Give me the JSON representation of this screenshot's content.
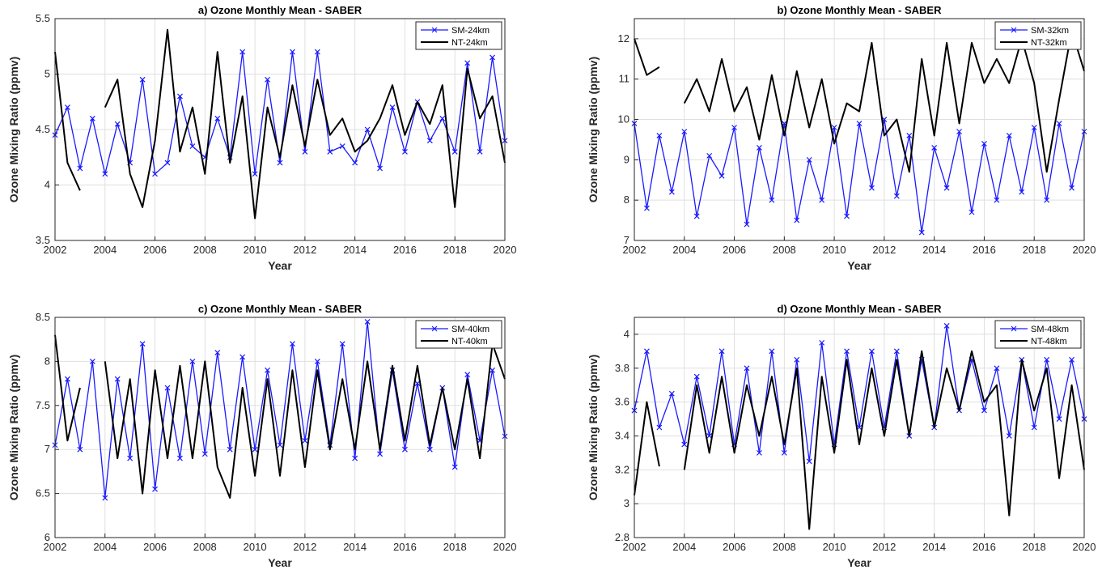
{
  "figure": {
    "background": "#ffffff",
    "sm_color": "#1a1aff",
    "nt_color": "#000000"
  },
  "chart_data": [
    {
      "type": "line",
      "title": "a) Ozone Monthly Mean - SABER",
      "xlabel": "Year",
      "ylabel": "Ozone Mixing Ratio (ppmv)",
      "xlim": [
        2002,
        2020
      ],
      "ylim": [
        3.5,
        5.5
      ],
      "xticks": [
        "2002",
        "2004",
        "2006",
        "2008",
        "2010",
        "2012",
        "2014",
        "2016",
        "2018",
        "2020"
      ],
      "yticks": [
        "3.5",
        "4",
        "4.5",
        "5",
        "5.5"
      ],
      "grid": true,
      "legend_position": "top-right",
      "series": [
        {
          "name": "SM-24km",
          "color": "#1a1aff",
          "marker": "x",
          "x": [
            2002.0,
            2002.5,
            2003.0,
            2003.5,
            2004.0,
            2004.5,
            2005.0,
            2005.5,
            2006.0,
            2006.5,
            2007.0,
            2007.5,
            2008.0,
            2008.5,
            2009.0,
            2009.5,
            2010.0,
            2010.5,
            2011.0,
            2011.5,
            2012.0,
            2012.5,
            2013.0,
            2013.5,
            2014.0,
            2014.5,
            2015.0,
            2015.5,
            2016.0,
            2016.5,
            2017.0,
            2017.5,
            2018.0,
            2018.5,
            2019.0,
            2019.5,
            2020.0
          ],
          "values": [
            4.45,
            4.7,
            4.15,
            4.6,
            4.1,
            4.55,
            4.2,
            4.95,
            4.1,
            4.2,
            4.8,
            4.35,
            4.25,
            4.6,
            4.25,
            5.2,
            4.1,
            4.95,
            4.2,
            5.2,
            4.3,
            5.2,
            4.3,
            4.35,
            4.2,
            4.5,
            4.15,
            4.7,
            4.3,
            4.75,
            4.4,
            4.6,
            4.3,
            5.1,
            4.3,
            5.15,
            4.4
          ]
        },
        {
          "name": "NT-24km",
          "color": "#000000",
          "marker": "none",
          "x": [
            2002.0,
            2002.5,
            2003.0,
            2003.5,
            2004.0,
            2004.5,
            2005.0,
            2005.5,
            2006.0,
            2006.5,
            2007.0,
            2007.5,
            2008.0,
            2008.5,
            2009.0,
            2009.5,
            2010.0,
            2010.5,
            2011.0,
            2011.5,
            2012.0,
            2012.5,
            2013.0,
            2013.5,
            2014.0,
            2014.5,
            2015.0,
            2015.5,
            2016.0,
            2016.5,
            2017.0,
            2017.5,
            2018.0,
            2018.5,
            2019.0,
            2019.5,
            2020.0
          ],
          "values": [
            5.2,
            4.2,
            3.95,
            null,
            4.7,
            4.95,
            4.1,
            3.8,
            4.4,
            5.4,
            4.3,
            4.7,
            4.1,
            5.2,
            4.2,
            4.8,
            3.7,
            4.7,
            4.25,
            4.9,
            4.35,
            4.95,
            4.45,
            4.6,
            4.3,
            4.4,
            4.6,
            4.9,
            4.45,
            4.75,
            4.55,
            4.9,
            3.8,
            5.05,
            4.6,
            4.8,
            4.2
          ]
        }
      ]
    },
    {
      "type": "line",
      "title": "b) Ozone Monthly Mean - SABER",
      "xlabel": "Year",
      "ylabel": "Ozone Mixing Ratio (ppmv)",
      "xlim": [
        2002,
        2020
      ],
      "ylim": [
        7,
        12.5
      ],
      "xticks": [
        "2002",
        "2004",
        "2006",
        "2008",
        "2010",
        "2012",
        "2014",
        "2016",
        "2018",
        "2020"
      ],
      "yticks": [
        "7",
        "8",
        "9",
        "10",
        "11",
        "12"
      ],
      "grid": true,
      "legend_position": "top-right",
      "series": [
        {
          "name": "SM-32km",
          "color": "#1a1aff",
          "marker": "x",
          "x": [
            2002.0,
            2002.5,
            2003.0,
            2003.5,
            2004.0,
            2004.5,
            2005.0,
            2005.5,
            2006.0,
            2006.5,
            2007.0,
            2007.5,
            2008.0,
            2008.5,
            2009.0,
            2009.5,
            2010.0,
            2010.5,
            2011.0,
            2011.5,
            2012.0,
            2012.5,
            2013.0,
            2013.5,
            2014.0,
            2014.5,
            2015.0,
            2015.5,
            2016.0,
            2016.5,
            2017.0,
            2017.5,
            2018.0,
            2018.5,
            2019.0,
            2019.5,
            2020.0
          ],
          "values": [
            9.9,
            7.8,
            9.6,
            8.2,
            9.7,
            7.6,
            9.1,
            8.6,
            9.8,
            7.4,
            9.3,
            8.0,
            9.9,
            7.5,
            9.0,
            8.0,
            9.8,
            7.6,
            9.9,
            8.3,
            10.0,
            8.1,
            9.6,
            7.2,
            9.3,
            8.3,
            9.7,
            7.7,
            9.4,
            8.0,
            9.6,
            8.2,
            9.8,
            8.0,
            9.9,
            8.3,
            9.7
          ]
        },
        {
          "name": "NT-32km",
          "color": "#000000",
          "marker": "none",
          "x": [
            2002.0,
            2002.5,
            2003.0,
            2003.5,
            2004.0,
            2004.5,
            2005.0,
            2005.5,
            2006.0,
            2006.5,
            2007.0,
            2007.5,
            2008.0,
            2008.5,
            2009.0,
            2009.5,
            2010.0,
            2010.5,
            2011.0,
            2011.5,
            2012.0,
            2012.5,
            2013.0,
            2013.5,
            2014.0,
            2014.5,
            2015.0,
            2015.5,
            2016.0,
            2016.5,
            2017.0,
            2017.5,
            2018.0,
            2018.5,
            2019.0,
            2019.5,
            2020.0
          ],
          "values": [
            12.0,
            11.1,
            11.3,
            null,
            10.4,
            11.0,
            10.2,
            11.5,
            10.2,
            10.8,
            9.5,
            11.1,
            9.6,
            11.2,
            9.8,
            11.0,
            9.4,
            10.4,
            10.2,
            11.9,
            9.6,
            10.0,
            8.7,
            11.5,
            9.6,
            11.9,
            9.9,
            11.9,
            10.9,
            11.5,
            10.9,
            12.0,
            10.9,
            8.7,
            10.5,
            12.2,
            11.2
          ]
        }
      ]
    },
    {
      "type": "line",
      "title": "c) Ozone Monthly Mean - SABER",
      "xlabel": "Year",
      "ylabel": "Ozone Mixing Ratio (ppmv)",
      "xlim": [
        2002,
        2020
      ],
      "ylim": [
        6,
        8.5
      ],
      "xticks": [
        "2002",
        "2004",
        "2006",
        "2008",
        "2010",
        "2012",
        "2014",
        "2016",
        "2018",
        "2020"
      ],
      "yticks": [
        "6",
        "6.5",
        "7",
        "7.5",
        "8",
        "8.5"
      ],
      "grid": true,
      "legend_position": "top-right",
      "series": [
        {
          "name": "SM-40km",
          "color": "#1a1aff",
          "marker": "x",
          "x": [
            2002.0,
            2002.5,
            2003.0,
            2003.5,
            2004.0,
            2004.5,
            2005.0,
            2005.5,
            2006.0,
            2006.5,
            2007.0,
            2007.5,
            2008.0,
            2008.5,
            2009.0,
            2009.5,
            2010.0,
            2010.5,
            2011.0,
            2011.5,
            2012.0,
            2012.5,
            2013.0,
            2013.5,
            2014.0,
            2014.5,
            2015.0,
            2015.5,
            2016.0,
            2016.5,
            2017.0,
            2017.5,
            2018.0,
            2018.5,
            2019.0,
            2019.5,
            2020.0
          ],
          "values": [
            7.05,
            7.8,
            7.0,
            8.0,
            6.45,
            7.8,
            6.9,
            8.2,
            6.55,
            7.7,
            6.9,
            8.0,
            6.95,
            8.1,
            7.0,
            8.05,
            7.0,
            7.9,
            7.05,
            8.2,
            7.1,
            8.0,
            7.05,
            8.2,
            6.9,
            8.45,
            6.95,
            7.9,
            7.0,
            7.75,
            7.0,
            7.7,
            6.8,
            7.85,
            7.1,
            7.9,
            7.15
          ]
        },
        {
          "name": "NT-40km",
          "color": "#000000",
          "marker": "none",
          "x": [
            2002.0,
            2002.5,
            2003.0,
            2003.5,
            2004.0,
            2004.5,
            2005.0,
            2005.5,
            2006.0,
            2006.5,
            2007.0,
            2007.5,
            2008.0,
            2008.5,
            2009.0,
            2009.5,
            2010.0,
            2010.5,
            2011.0,
            2011.5,
            2012.0,
            2012.5,
            2013.0,
            2013.5,
            2014.0,
            2014.5,
            2015.0,
            2015.5,
            2016.0,
            2016.5,
            2017.0,
            2017.5,
            2018.0,
            2018.5,
            2019.0,
            2019.5,
            2020.0
          ],
          "values": [
            8.3,
            7.1,
            7.7,
            null,
            8.0,
            6.9,
            7.8,
            6.5,
            7.9,
            6.9,
            7.95,
            6.9,
            8.0,
            6.8,
            6.45,
            7.7,
            6.7,
            7.8,
            6.7,
            7.9,
            6.8,
            7.9,
            7.0,
            7.8,
            7.0,
            8.0,
            7.0,
            7.95,
            7.1,
            7.95,
            7.05,
            7.7,
            7.0,
            7.8,
            6.9,
            8.2,
            7.8
          ]
        }
      ]
    },
    {
      "type": "line",
      "title": "d) Ozone Monthly Mean - SABER",
      "xlabel": "Year",
      "ylabel": "Ozone Mixing Ratio (ppmv)",
      "xlim": [
        2002,
        2020
      ],
      "ylim": [
        2.8,
        4.1
      ],
      "xticks": [
        "2002",
        "2004",
        "2006",
        "2008",
        "2010",
        "2012",
        "2014",
        "2016",
        "2018",
        "2020"
      ],
      "yticks": [
        "2.8",
        "3",
        "3.2",
        "3.4",
        "3.6",
        "3.8",
        "4"
      ],
      "grid": true,
      "legend_position": "top-right",
      "series": [
        {
          "name": "SM-48km",
          "color": "#1a1aff",
          "marker": "x",
          "x": [
            2002.0,
            2002.5,
            2003.0,
            2003.5,
            2004.0,
            2004.5,
            2005.0,
            2005.5,
            2006.0,
            2006.5,
            2007.0,
            2007.5,
            2008.0,
            2008.5,
            2009.0,
            2009.5,
            2010.0,
            2010.5,
            2011.0,
            2011.5,
            2012.0,
            2012.5,
            2013.0,
            2013.5,
            2014.0,
            2014.5,
            2015.0,
            2015.5,
            2016.0,
            2016.5,
            2017.0,
            2017.5,
            2018.0,
            2018.5,
            2019.0,
            2019.5,
            2020.0
          ],
          "values": [
            3.55,
            3.9,
            3.45,
            3.65,
            3.35,
            3.75,
            3.4,
            3.9,
            3.35,
            3.8,
            3.3,
            3.9,
            3.3,
            3.85,
            3.25,
            3.95,
            3.35,
            3.9,
            3.45,
            3.9,
            3.45,
            3.9,
            3.4,
            3.85,
            3.45,
            4.05,
            3.55,
            3.85,
            3.55,
            3.8,
            3.4,
            3.85,
            3.45,
            3.85,
            3.5,
            3.85,
            3.5
          ]
        },
        {
          "name": "NT-48km",
          "color": "#000000",
          "marker": "none",
          "x": [
            2002.0,
            2002.5,
            2003.0,
            2003.5,
            2004.0,
            2004.5,
            2005.0,
            2005.5,
            2006.0,
            2006.5,
            2007.0,
            2007.5,
            2008.0,
            2008.5,
            2009.0,
            2009.5,
            2010.0,
            2010.5,
            2011.0,
            2011.5,
            2012.0,
            2012.5,
            2013.0,
            2013.5,
            2014.0,
            2014.5,
            2015.0,
            2015.5,
            2016.0,
            2016.5,
            2017.0,
            2017.5,
            2018.0,
            2018.5,
            2019.0,
            2019.5,
            2020.0
          ],
          "values": [
            3.05,
            3.6,
            3.22,
            null,
            3.2,
            3.7,
            3.3,
            3.75,
            3.3,
            3.7,
            3.4,
            3.75,
            3.35,
            3.8,
            2.85,
            3.75,
            3.3,
            3.85,
            3.35,
            3.8,
            3.4,
            3.85,
            3.4,
            3.9,
            3.45,
            3.8,
            3.55,
            3.9,
            3.6,
            3.7,
            2.93,
            3.85,
            3.55,
            3.8,
            3.15,
            3.7,
            3.2
          ]
        }
      ]
    }
  ]
}
